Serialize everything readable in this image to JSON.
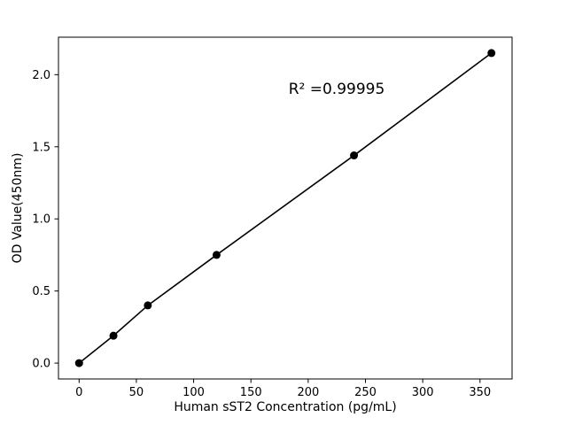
{
  "chart_data": {
    "type": "scatter",
    "title": "",
    "xlabel": "Human sST2 Concentration (pg/mL)",
    "ylabel": "OD Value(450nm)",
    "annotation": "R² =0.99995",
    "x": [
      0,
      30,
      60,
      120,
      240,
      360
    ],
    "y": [
      0.0,
      0.19,
      0.4,
      0.75,
      1.44,
      2.15
    ],
    "xticks": [
      0,
      50,
      100,
      150,
      200,
      250,
      300,
      350
    ],
    "yticks": [
      0.0,
      0.5,
      1.0,
      1.5,
      2.0
    ],
    "xlim": [
      -18,
      378
    ],
    "ylim": [
      -0.11,
      2.26
    ],
    "line_color": "#000000",
    "marker_color": "#000000",
    "axis_color": "#000000",
    "background": "#ffffff",
    "legend": "none",
    "grid": "off"
  }
}
